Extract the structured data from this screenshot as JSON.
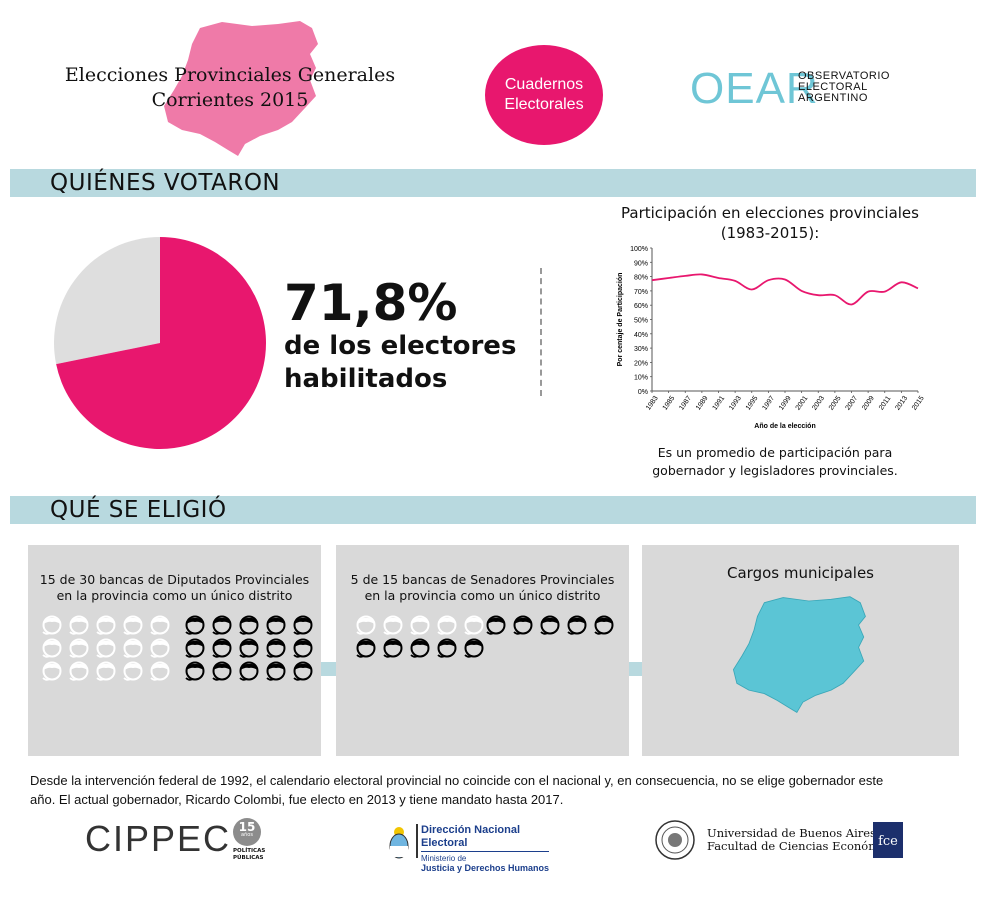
{
  "header": {
    "title_line1": "Elecciones Provinciales Generales",
    "title_line2": "Corrientes 2015",
    "pill_line1": "Cuadernos",
    "pill_line2": "Electorales",
    "oear_mark": "OEAR",
    "oear_line1": "OBSERVATORIO",
    "oear_line2": "ELECTORAL",
    "oear_line3": "ARGENTINO"
  },
  "colors": {
    "accent": "#e8176e",
    "banner": "#b8d9df",
    "map": "#5bc5d5",
    "map_header": "#ef7aa8",
    "grey": "#d9d9d9",
    "pie_rest": "#dedede"
  },
  "section1": {
    "heading": "QUIÉNES VOTARON",
    "big_value": "71,8%",
    "big_line1": "de los electores",
    "big_line2": "habilitados"
  },
  "chart_data": [
    {
      "type": "pie",
      "values": [
        71.8,
        28.2
      ]
    },
    {
      "type": "line",
      "title_line1": "Participación en elecciones provinciales",
      "title_line2": "(1983-2015):",
      "xlabel": "Año de la elección",
      "ylabel": "Por centaje de Participación",
      "x": [
        1983,
        1985,
        1987,
        1989,
        1991,
        1993,
        1995,
        1997,
        1999,
        2001,
        2003,
        2005,
        2007,
        2009,
        2011,
        2013,
        2015
      ],
      "y": [
        77.5,
        79,
        80.5,
        81.5,
        79,
        77,
        71,
        77.5,
        78,
        70,
        67,
        67,
        60.5,
        69.5,
        69.5,
        76,
        71.8
      ],
      "ylim": [
        0,
        100
      ],
      "yticks": [
        "0%",
        "10%",
        "20%",
        "30%",
        "40%",
        "50%",
        "60%",
        "70%",
        "80%",
        "90%",
        "100%"
      ],
      "line_color": "#e8176e",
      "note_line1": "Es un promedio de participación para",
      "note_line2": "gobernador y legisladores provinciales."
    }
  ],
  "section2": {
    "heading": "QUÉ SE ELIGIÓ",
    "card1_line1": "15 de 30 bancas de Diputados Provinciales",
    "card1_line2": "en la provincia como un único distrito",
    "card1_white": 15,
    "card1_black": 15,
    "card2_line1": "5 de 15 bancas de Senadores Provinciales",
    "card2_line2": "en la provincia como un único distrito",
    "card2_white": 5,
    "card2_black": 10,
    "card3_title": "Cargos municipales"
  },
  "footer": {
    "note_line1": "Desde la intervención federal de 1992, el calendario electoral provincial no coincide con el nacional y, en consecuencia, no se elige gobernador este",
    "note_line2": "año. El actual gobernador, Ricardo Colombi, fue electo en 2013 y tiene mandato hasta 2017.",
    "cippec": "CIPPEC",
    "cippec_badge": "15",
    "cippec_badge_sub": "años",
    "cippec_sub1": "POLÍTICAS",
    "cippec_sub2": "PÚBLICAS",
    "dne_line1": "Dirección Nacional Electoral",
    "dne_line2": "Ministerio de",
    "dne_line3": "Justicia y Derechos Humanos",
    "uba_line1": "Universidad de Buenos Aires",
    "uba_line2": "Facultad de Ciencias Económicas",
    "fce": "fce"
  }
}
